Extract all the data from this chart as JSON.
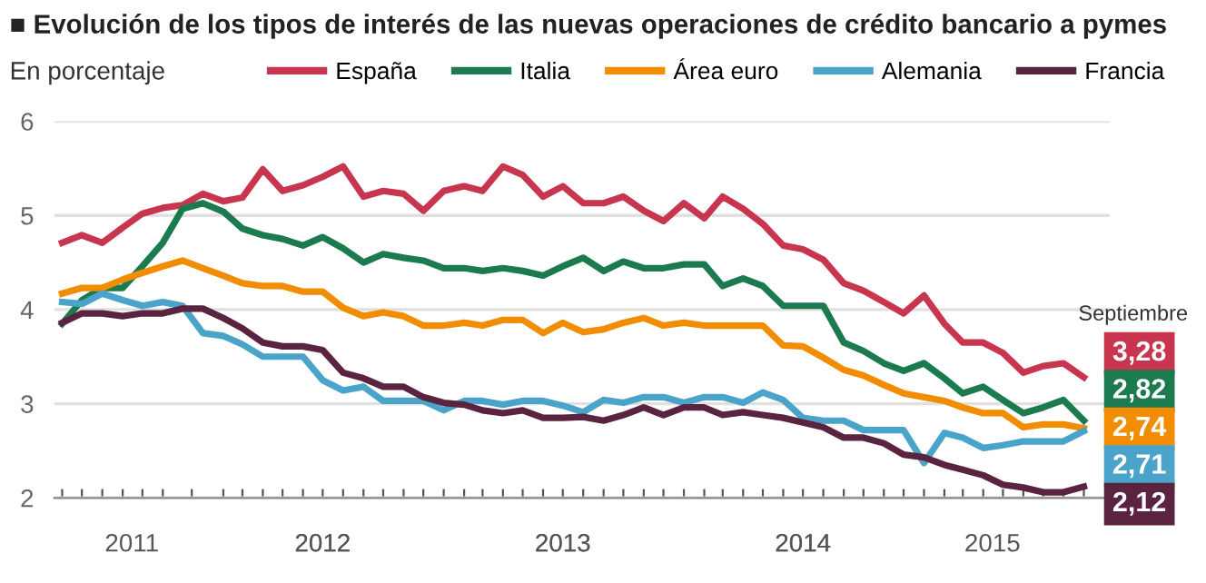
{
  "chart_data": {
    "type": "line",
    "title": "■ Evolución de los tipos de interés de las nuevas operaciones de crédito bancario a pymes",
    "subtitle": "En porcentaje",
    "annotations": [
      "Septiembre"
    ],
    "x": [
      "2011-06",
      "2011-07",
      "2011-08",
      "2011-09",
      "2011-10",
      "2011-11",
      "2011-12",
      "2012-01",
      "2012-02",
      "2012-03",
      "2012-04",
      "2012-05",
      "2012-06",
      "2012-07",
      "2012-08",
      "2012-09",
      "2012-10",
      "2012-11",
      "2012-12",
      "2013-01",
      "2013-02",
      "2013-03",
      "2013-04",
      "2013-05",
      "2013-06",
      "2013-07",
      "2013-08",
      "2013-09",
      "2013-10",
      "2013-11",
      "2013-12",
      "2014-01",
      "2014-02",
      "2014-03",
      "2014-04",
      "2014-05",
      "2014-06",
      "2014-07",
      "2014-08",
      "2014-09",
      "2014-10",
      "2014-11",
      "2014-12",
      "2015-01",
      "2015-02",
      "2015-03",
      "2015-04",
      "2015-05",
      "2015-06",
      "2015-07",
      "2015-08",
      "2015-09"
    ],
    "series": [
      {
        "name": "España",
        "color": "#c8354f",
        "values": [
          4.71,
          4.79,
          4.71,
          4.87,
          5.02,
          5.08,
          5.11,
          5.23,
          5.15,
          5.19,
          5.49,
          5.26,
          5.32,
          5.41,
          5.52,
          5.2,
          5.26,
          5.23,
          5.05,
          5.26,
          5.31,
          5.26,
          5.52,
          5.43,
          5.2,
          5.31,
          5.13,
          5.13,
          5.2,
          5.05,
          4.94,
          5.13,
          4.97,
          5.2,
          5.07,
          4.91,
          4.68,
          4.64,
          4.53,
          4.28,
          4.2,
          4.08,
          3.96,
          4.15,
          3.85,
          3.65,
          3.65,
          3.54,
          3.33,
          3.4,
          3.43,
          3.28
        ],
        "value_labels": [
          null,
          null,
          null,
          null,
          null,
          null,
          null,
          null,
          null,
          null,
          null,
          null,
          null,
          null,
          null,
          null,
          null,
          null,
          null,
          null,
          null,
          null,
          null,
          null,
          null,
          null,
          null,
          null,
          null,
          null,
          null,
          null,
          null,
          null,
          null,
          null,
          null,
          null,
          null,
          null,
          null,
          null,
          null,
          null,
          null,
          null,
          null,
          null,
          null,
          null,
          null,
          "3,28"
        ]
      },
      {
        "name": "Italia",
        "color": "#1b7a4e",
        "values": [
          3.85,
          4.1,
          4.23,
          4.23,
          4.46,
          4.71,
          5.07,
          5.13,
          5.04,
          4.86,
          4.79,
          4.75,
          4.68,
          4.77,
          4.65,
          4.5,
          4.59,
          4.55,
          4.52,
          4.44,
          4.44,
          4.41,
          4.44,
          4.41,
          4.36,
          4.46,
          4.55,
          4.41,
          4.51,
          4.44,
          4.44,
          4.48,
          4.48,
          4.25,
          4.33,
          4.25,
          4.04,
          4.04,
          4.04,
          3.65,
          3.56,
          3.43,
          3.35,
          3.43,
          3.27,
          3.11,
          3.18,
          3.04,
          2.9,
          2.96,
          3.04,
          2.82
        ],
        "value_labels": [
          null,
          null,
          null,
          null,
          null,
          null,
          null,
          null,
          null,
          null,
          null,
          null,
          null,
          null,
          null,
          null,
          null,
          null,
          null,
          null,
          null,
          null,
          null,
          null,
          null,
          null,
          null,
          null,
          null,
          null,
          null,
          null,
          null,
          null,
          null,
          null,
          null,
          null,
          null,
          null,
          null,
          null,
          null,
          null,
          null,
          null,
          null,
          null,
          null,
          null,
          null,
          "2,82"
        ]
      },
      {
        "name": "Área euro",
        "color": "#f28c00",
        "values": [
          4.17,
          4.23,
          4.23,
          4.32,
          4.39,
          4.46,
          4.52,
          4.44,
          4.36,
          4.28,
          4.25,
          4.25,
          4.19,
          4.19,
          4.02,
          3.93,
          3.97,
          3.93,
          3.83,
          3.83,
          3.86,
          3.83,
          3.89,
          3.89,
          3.75,
          3.86,
          3.76,
          3.79,
          3.86,
          3.91,
          3.83,
          3.86,
          3.83,
          3.83,
          3.83,
          3.83,
          3.62,
          3.61,
          3.49,
          3.36,
          3.3,
          3.2,
          3.11,
          3.07,
          3.03,
          2.96,
          2.9,
          2.9,
          2.75,
          2.78,
          2.78,
          2.74
        ],
        "value_labels": [
          null,
          null,
          null,
          null,
          null,
          null,
          null,
          null,
          null,
          null,
          null,
          null,
          null,
          null,
          null,
          null,
          null,
          null,
          null,
          null,
          null,
          null,
          null,
          null,
          null,
          null,
          null,
          null,
          null,
          null,
          null,
          null,
          null,
          null,
          null,
          null,
          null,
          null,
          null,
          null,
          null,
          null,
          null,
          null,
          null,
          null,
          null,
          null,
          null,
          null,
          null,
          "2,74"
        ]
      },
      {
        "name": "Alemania",
        "color": "#4aa3c8",
        "values": [
          4.08,
          4.06,
          4.17,
          4.1,
          4.04,
          4.08,
          4.04,
          3.75,
          3.72,
          3.63,
          3.5,
          3.5,
          3.5,
          3.25,
          3.14,
          3.18,
          3.03,
          3.03,
          3.03,
          2.93,
          3.03,
          3.03,
          2.99,
          3.03,
          3.03,
          2.98,
          2.91,
          3.04,
          3.01,
          3.07,
          3.07,
          3.01,
          3.07,
          3.07,
          3.01,
          3.12,
          3.04,
          2.85,
          2.82,
          2.82,
          2.72,
          2.72,
          2.72,
          2.37,
          2.69,
          2.64,
          2.53,
          2.56,
          2.6,
          2.6,
          2.6,
          2.71
        ],
        "value_labels": [
          null,
          null,
          null,
          null,
          null,
          null,
          null,
          null,
          null,
          null,
          null,
          null,
          null,
          null,
          null,
          null,
          null,
          null,
          null,
          null,
          null,
          null,
          null,
          null,
          null,
          null,
          null,
          null,
          null,
          null,
          null,
          null,
          null,
          null,
          null,
          null,
          null,
          null,
          null,
          null,
          null,
          null,
          null,
          null,
          null,
          null,
          null,
          null,
          null,
          null,
          null,
          "2,71"
        ]
      },
      {
        "name": "Francia",
        "color": "#5a2340",
        "values": [
          3.86,
          3.96,
          3.96,
          3.93,
          3.96,
          3.96,
          4.01,
          4.01,
          3.91,
          3.8,
          3.65,
          3.61,
          3.61,
          3.57,
          3.33,
          3.27,
          3.18,
          3.18,
          3.07,
          3.01,
          2.99,
          2.93,
          2.9,
          2.93,
          2.85,
          2.85,
          2.86,
          2.82,
          2.88,
          2.96,
          2.88,
          2.96,
          2.96,
          2.88,
          2.91,
          2.88,
          2.85,
          2.8,
          2.75,
          2.64,
          2.64,
          2.58,
          2.46,
          2.43,
          2.35,
          2.3,
          2.24,
          2.14,
          2.11,
          2.06,
          2.06,
          2.12
        ],
        "value_labels": [
          null,
          null,
          null,
          null,
          null,
          null,
          null,
          null,
          null,
          null,
          null,
          null,
          null,
          null,
          null,
          null,
          null,
          null,
          null,
          null,
          null,
          null,
          null,
          null,
          null,
          null,
          null,
          null,
          null,
          null,
          null,
          null,
          null,
          null,
          null,
          null,
          null,
          null,
          null,
          null,
          null,
          null,
          null,
          null,
          null,
          null,
          null,
          null,
          null,
          null,
          null,
          "2,12"
        ]
      }
    ],
    "ylim": [
      2,
      6
    ],
    "yticks": [
      2,
      3,
      4,
      5,
      6
    ],
    "xlim": [
      "2011-05-20",
      "2015-10-10"
    ],
    "xticks": [
      {
        "value": "2011-06-01",
        "label": null
      },
      {
        "value": "2011-07-01",
        "label": null
      },
      {
        "value": "2011-08-01",
        "label": null
      },
      {
        "value": "2011-09-01",
        "label": null
      },
      {
        "value": "2011-10-01",
        "label": null
      },
      {
        "value": "2011-11-01",
        "label": null
      },
      {
        "value": "2011-12-15",
        "label": null
      },
      {
        "value": "2012-02-01",
        "label": null
      },
      {
        "value": "2012-03-01",
        "label": null
      },
      {
        "value": "2012-04-01",
        "label": null
      },
      {
        "value": "2012-05-01",
        "label": null
      },
      {
        "value": "2012-06-01",
        "label": null
      },
      {
        "value": "2012-07-01",
        "label": null
      },
      {
        "value": "2012-08-01",
        "label": null
      },
      {
        "value": "2012-09-01",
        "label": null
      },
      {
        "value": "2012-10-01",
        "label": null
      },
      {
        "value": "2012-11-01",
        "label": null
      },
      {
        "value": "2012-12-01",
        "label": null
      },
      {
        "value": "2013-01-01",
        "label": null
      },
      {
        "value": "2013-02-01",
        "label": null
      },
      {
        "value": "2013-03-01",
        "label": null
      },
      {
        "value": "2013-04-01",
        "label": null
      },
      {
        "value": "2013-05-01",
        "label": null
      },
      {
        "value": "2013-06-01",
        "label": null
      },
      {
        "value": "2013-07-01",
        "label": null
      },
      {
        "value": "2013-08-01",
        "label": null
      },
      {
        "value": "2013-09-01",
        "label": null
      },
      {
        "value": "2013-10-01",
        "label": null
      },
      {
        "value": "2013-11-01",
        "label": null
      },
      {
        "value": "2013-12-01",
        "label": null
      },
      {
        "value": "2014-01-01",
        "label": null
      },
      {
        "value": "2014-02-01",
        "label": null
      },
      {
        "value": "2014-03-01",
        "label": null
      },
      {
        "value": "2014-04-01",
        "label": null
      },
      {
        "value": "2014-05-01",
        "label": null
      },
      {
        "value": "2014-06-01",
        "label": null
      },
      {
        "value": "2014-07-01",
        "label": null
      },
      {
        "value": "2014-08-01",
        "label": null
      },
      {
        "value": "2014-09-01",
        "label": null
      },
      {
        "value": "2014-10-01",
        "label": null
      },
      {
        "value": "2014-11-01",
        "label": null
      },
      {
        "value": "2014-12-01",
        "label": null
      },
      {
        "value": "2015-01-01",
        "label": null
      },
      {
        "value": "2015-02-01",
        "label": null
      },
      {
        "value": "2015-03-01",
        "label": null
      },
      {
        "value": "2015-04-01",
        "label": null
      },
      {
        "value": "2015-05-01",
        "label": null
      },
      {
        "value": "2015-06-01",
        "label": null
      },
      {
        "value": "2015-07-01",
        "label": null
      },
      {
        "value": "2015-08-01",
        "label": null
      },
      {
        "value": "2015-09-01",
        "label": null
      },
      {
        "value": "2011-09-15",
        "label": "2011"
      },
      {
        "value": "2012-07-01",
        "label": "2012"
      },
      {
        "value": "2013-07-01",
        "label": "2013"
      },
      {
        "value": "2014-07-01",
        "label": "2014"
      },
      {
        "value": "2015-04-15",
        "label": "2015"
      }
    ],
    "grid": "y",
    "legend": "top",
    "marker": "none",
    "line_style": "solid"
  }
}
